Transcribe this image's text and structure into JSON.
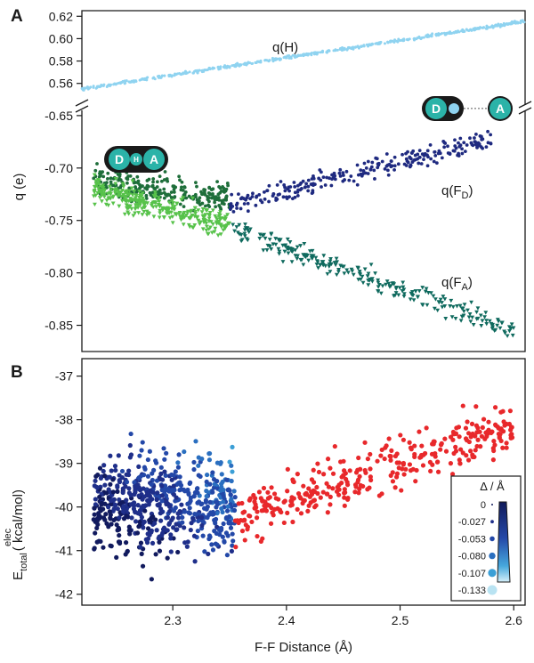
{
  "panels": {
    "a_label": "A",
    "b_label": "B"
  },
  "colors": {
    "h": "#8fd3f0",
    "fd_dark_blue": "#1f2a80",
    "fd_dark_green": "#1e6e3a",
    "fa_teal": "#0f6a5e",
    "fa_light_green": "#57c24a",
    "red": "#e8282b",
    "icon_teal": "#2bb3a8",
    "icon_outline": "#1a1a1a"
  },
  "icons": {
    "left": {
      "d": "D",
      "h": "H",
      "a": "A"
    },
    "right": {
      "d": "D",
      "a": "A",
      "dots": "·······"
    }
  },
  "chart_data": [
    {
      "panel": "A-top",
      "type": "scatter",
      "title": "",
      "xlabel": "",
      "ylabel": "",
      "ylim": [
        0.555,
        0.625
      ],
      "yticks": [
        "0.62",
        "0.60",
        "0.58",
        "0.56"
      ],
      "series": [
        {
          "name": "q(H)",
          "color": "#8fd3f0",
          "x_range": [
            2.22,
            2.61
          ],
          "trend": {
            "x": [
              2.22,
              2.6
            ],
            "y": [
              0.555,
              0.614
            ]
          },
          "n_points": 520
        }
      ]
    },
    {
      "panel": "A-bottom",
      "type": "scatter",
      "xlim": [
        2.22,
        2.61
      ],
      "ylim": [
        -0.875,
        -0.645
      ],
      "yticks": [
        "-0.65",
        "-0.70",
        "-0.75",
        "-0.80",
        "-0.85"
      ],
      "ylabel": "q (e)",
      "series": [
        {
          "name": "q(FD)",
          "label_text": "q(F",
          "label_sub": "D",
          "label_close": ")",
          "segments": [
            {
              "color": "#1e6e3a",
              "x_range": [
                2.23,
                2.35
              ],
              "trend_y": [
                -0.713,
                -0.728
              ],
              "spread": 0.014,
              "n": 260
            },
            {
              "color": "#1f2a80",
              "x_range": [
                2.35,
                2.58
              ],
              "trend_y": [
                -0.735,
                -0.672
              ],
              "spread": 0.01,
              "n": 260
            }
          ],
          "marker": "circle"
        },
        {
          "name": "q(FA)",
          "label_text": "q(F",
          "label_sub": "A",
          "label_close": ")",
          "segments": [
            {
              "color": "#57c24a",
              "x_range": [
                2.23,
                2.35
              ],
              "trend_y": [
                -0.72,
                -0.755
              ],
              "spread": 0.012,
              "n": 320
            },
            {
              "color": "#0f6a5e",
              "x_range": [
                2.35,
                2.6
              ],
              "trend_y": [
                -0.758,
                -0.855
              ],
              "spread": 0.01,
              "n": 260
            }
          ],
          "marker": "triangle-down"
        }
      ]
    },
    {
      "panel": "B",
      "type": "scatter",
      "xlim": [
        2.22,
        2.61
      ],
      "ylim": [
        -42.25,
        -36.6
      ],
      "xticks": [
        "2.3",
        "2.4",
        "2.5",
        "2.6"
      ],
      "yticks": [
        "-37",
        "-38",
        "-39",
        "-40",
        "-41",
        "-42"
      ],
      "xlabel": "F-F Distance (Å)",
      "ylabel_main": "E",
      "ylabel_sup": "elec",
      "ylabel_sub": "total",
      "ylabel_unit": "( kcal/mol)",
      "series": [
        {
          "name": "delta-colored",
          "x_range": [
            2.23,
            2.355
          ],
          "y_center": -39.9,
          "y_spread": 1.1,
          "n": 620
        },
        {
          "name": "red",
          "color": "#e8282b",
          "x_range": [
            2.355,
            2.6
          ],
          "trend_y": [
            -40.3,
            -38.1
          ],
          "spread": 0.6,
          "n": 340
        }
      ],
      "colorbar": {
        "title": "Δ / Å",
        "entries": [
          "0",
          "-0.027",
          "-0.053",
          "-0.080",
          "-0.107",
          "-0.133"
        ],
        "colors": [
          "#111a5e",
          "#1f2f8a",
          "#2348a8",
          "#2a6fc0",
          "#3b9fd6",
          "#b9e3f2"
        ]
      }
    }
  ]
}
